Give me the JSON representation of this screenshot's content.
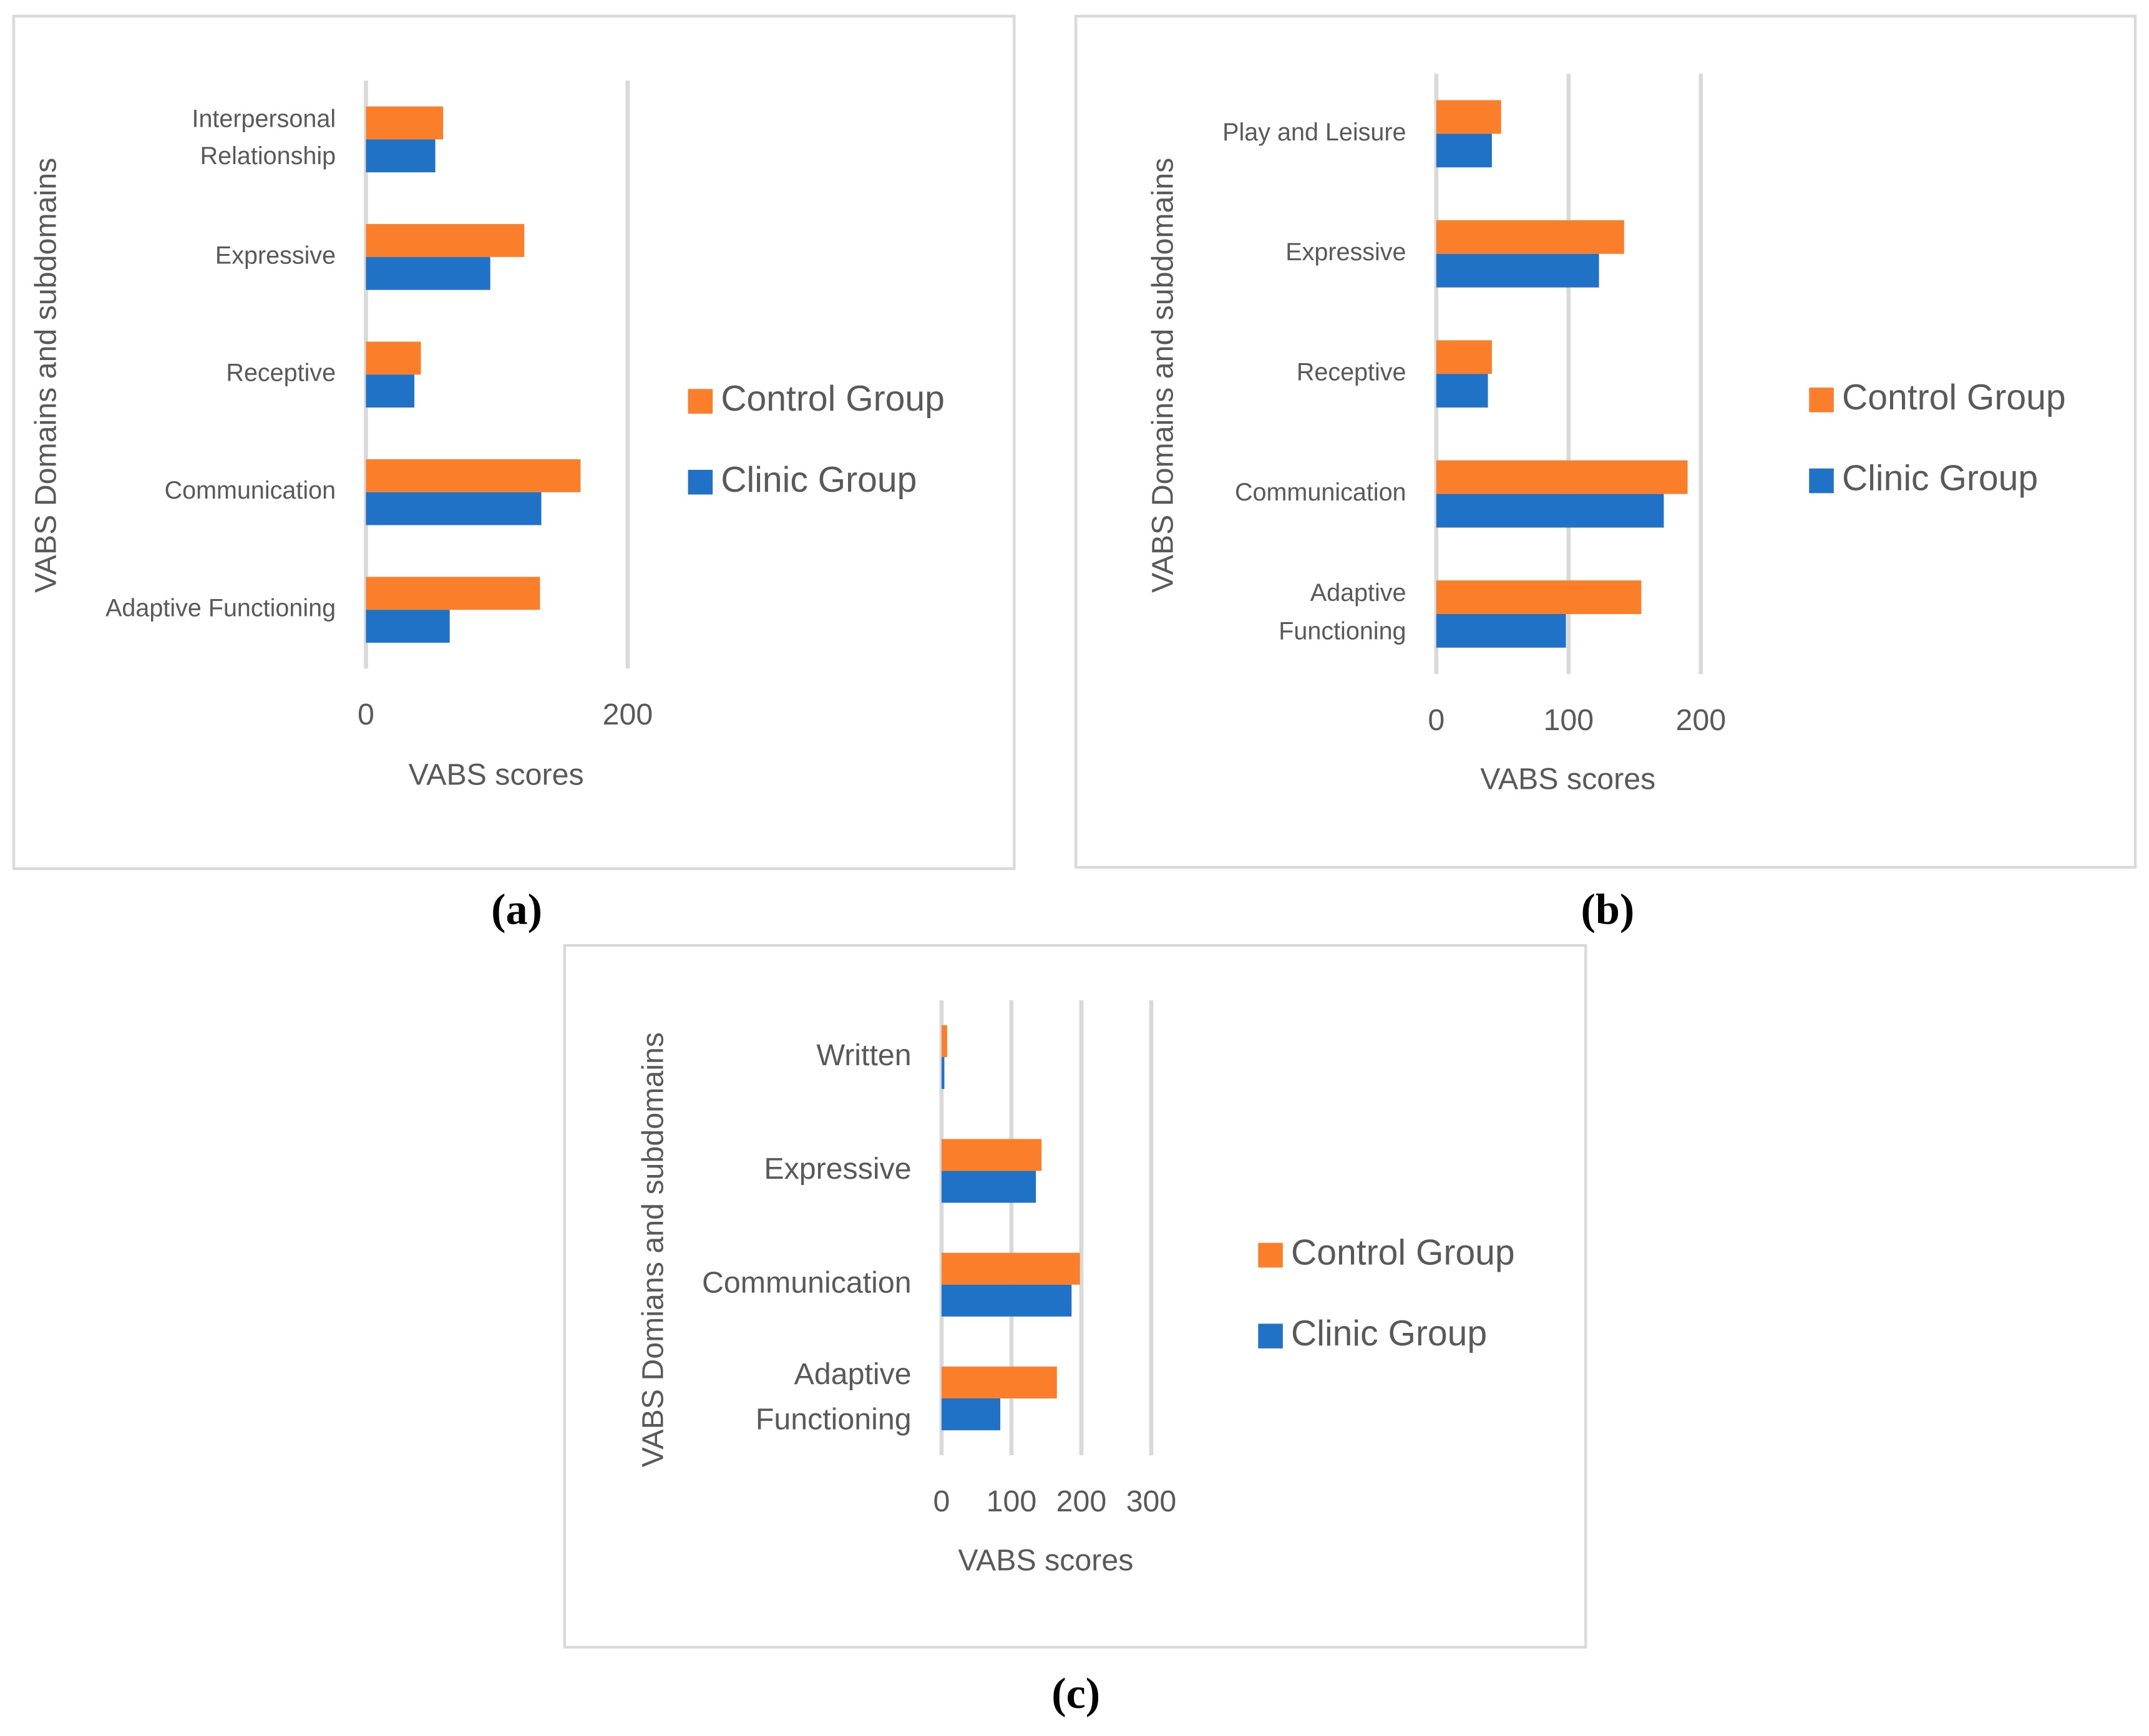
{
  "chart_data": [
    {
      "type": "bar",
      "orientation": "horizontal",
      "panel_label": "(a)",
      "xlabel": "VABS scores",
      "ylabel": "VABS Domains and subdomains",
      "categories": [
        "Adaptive Functioning",
        "Communication",
        "Receptive",
        "Expressive",
        "Interpersonal Relationship"
      ],
      "series": [
        {
          "name": "Control Group",
          "color": "#fb7f2a",
          "values": [
            133,
            164,
            42,
            121,
            59
          ]
        },
        {
          "name": "Clinic Group",
          "color": "#1f72c6",
          "values": [
            64,
            134,
            37,
            95,
            53
          ]
        }
      ],
      "xlim": [
        0,
        200
      ],
      "xticks": [
        0,
        200
      ],
      "grid": true,
      "legend": "right"
    },
    {
      "type": "bar",
      "orientation": "horizontal",
      "panel_label": "(b)",
      "xlabel": "VABS scores",
      "ylabel": "VABS Domains and subdomains",
      "categories": [
        "Adaptive Functioning",
        "Communication",
        "Receptive",
        "Expressive",
        "Play and Leisure"
      ],
      "series": [
        {
          "name": "Control Group",
          "color": "#fb7f2a",
          "values": [
            155,
            190,
            42,
            142,
            49
          ]
        },
        {
          "name": "Clinic Group",
          "color": "#1f72c6",
          "values": [
            98,
            172,
            39,
            123,
            42
          ]
        }
      ],
      "xlim": [
        0,
        200
      ],
      "xticks": [
        0,
        100,
        200
      ],
      "grid": true,
      "legend": "right"
    },
    {
      "type": "bar",
      "orientation": "horizontal",
      "panel_label": "(c)",
      "xlabel": "VABS scores",
      "ylabel": "VABS Domians and subdomains",
      "categories": [
        "Adaptive Functioning",
        "Communication",
        "Expressive",
        "Written"
      ],
      "series": [
        {
          "name": "Control Group",
          "color": "#fb7f2a",
          "values": [
            165,
            198,
            143,
            8
          ]
        },
        {
          "name": "Clinic Group",
          "color": "#1f72c6",
          "values": [
            84,
            186,
            135,
            4
          ]
        }
      ],
      "xlim": [
        0,
        300
      ],
      "xticks": [
        0,
        100,
        200,
        300
      ],
      "grid": true,
      "legend": "right"
    }
  ]
}
